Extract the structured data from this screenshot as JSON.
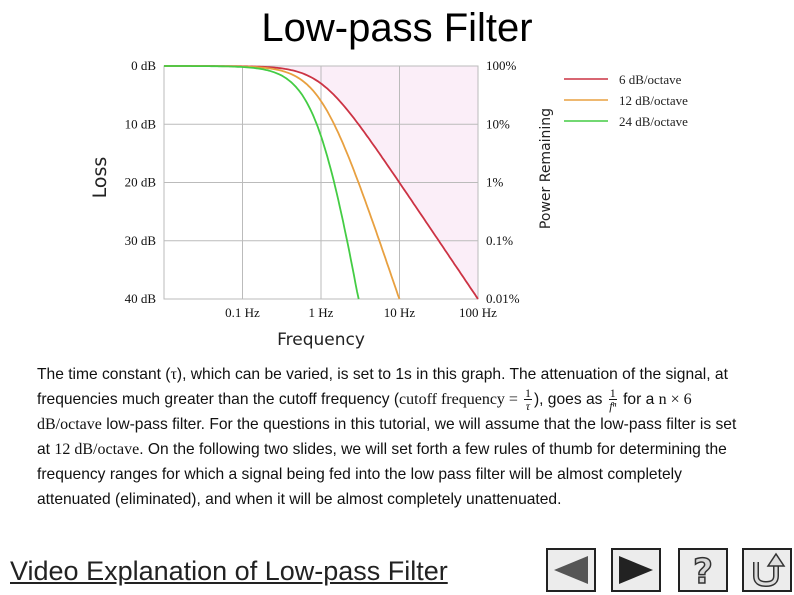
{
  "title": "Low-pass Filter",
  "chart_data": {
    "type": "line",
    "title": "",
    "xlabel": "Frequency",
    "ylabel": "Loss",
    "y2label": "Power Remaining",
    "x_scale": "log",
    "x_ticks": [
      "0.1 Hz",
      "1 Hz",
      "10 Hz",
      "100 Hz"
    ],
    "xlim_hz": [
      0.01,
      100
    ],
    "y_ticks": [
      "0 dB",
      "10 dB",
      "20 dB",
      "30 dB",
      "40 dB"
    ],
    "ylim_db": [
      0,
      40
    ],
    "y2_ticks": [
      "100%",
      "10%",
      "1%",
      "0.1%",
      "0.01%"
    ],
    "grid": true,
    "legend_position": "right",
    "series": [
      {
        "name": "6 dB/octave",
        "color": "#cc3344",
        "slope_db_per_octave": 6,
        "cutoff_hz": 1
      },
      {
        "name": "12 dB/octave",
        "color": "#e8a040",
        "slope_db_per_octave": 12,
        "cutoff_hz": 1
      },
      {
        "name": "24 dB/octave",
        "color": "#44cc44",
        "slope_db_per_octave": 24,
        "cutoff_hz": 1
      }
    ]
  },
  "text": {
    "p1": "The time constant (",
    "tau": "τ",
    "p2": "), which can be varied, is set to 1s in this graph. The attenuation of the signal, at frequencies much greater than the cutoff frequency (",
    "cutoff_math": "cutoff frequency = ",
    "cutoff_num": "1",
    "cutoff_den": "τ",
    "p3": "), goes as ",
    "power_num": "1",
    "power_den": "fⁿ",
    "p4": " for a ",
    "math_n6": "n × 6 dB/octave",
    "p5": " low-pass filter. For the questions in this tutorial, we will assume that the low-pass filter is set at ",
    "math_12": "12 dB/octave",
    "p6": ". On the following two slides, we will set forth a few rules of thumb for determining the frequency ranges for which a signal being fed into the low pass filter will be almost completely attenuated (eliminated), and when it will be almost completely unattenuated."
  },
  "video_link": "Video Explanation of Low-pass Filter",
  "nav": {
    "back_icon": "triangle-left-icon",
    "forward_icon": "triangle-right-icon",
    "help_icon": "question-mark-icon",
    "return_icon": "return-arrow-icon"
  }
}
